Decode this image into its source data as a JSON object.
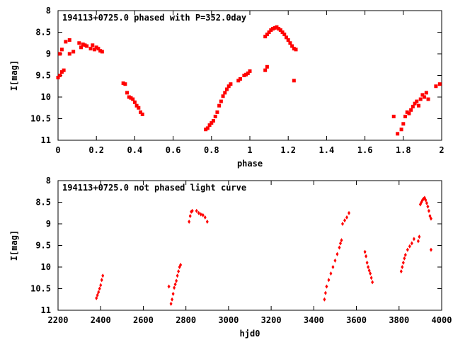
{
  "chart_data": [
    {
      "type": "scatter",
      "title": "194113+0725.0 phased with P=352.0day",
      "xlabel": "phase",
      "ylabel": "I[mag]",
      "xlim": [
        0,
        2
      ],
      "ylim": [
        11,
        8
      ],
      "y_inverted": true,
      "grid": false,
      "x_ticks": [
        "0",
        "0.2",
        "0.4",
        "0.6",
        "0.8",
        "1",
        "1.2",
        "1.4",
        "1.6",
        "1.8",
        "2"
      ],
      "y_ticks": [
        "8",
        "8.5",
        "9",
        "9.5",
        "10",
        "10.5",
        "11"
      ],
      "marker_color": "#ff0000",
      "marker": "filled-square",
      "series": [
        {
          "points": [
            [
              0.0,
              9.55
            ],
            [
              0.01,
              9.5
            ],
            [
              0.01,
              9.0
            ],
            [
              0.02,
              9.42
            ],
            [
              0.02,
              8.9
            ],
            [
              0.03,
              9.38
            ],
            [
              0.04,
              8.72
            ],
            [
              0.06,
              9.0
            ],
            [
              0.06,
              8.68
            ],
            [
              0.08,
              8.95
            ],
            [
              0.11,
              8.75
            ],
            [
              0.12,
              8.85
            ],
            [
              0.13,
              8.78
            ],
            [
              0.14,
              8.8
            ],
            [
              0.15,
              8.82
            ],
            [
              0.17,
              8.88
            ],
            [
              0.18,
              8.8
            ],
            [
              0.19,
              8.9
            ],
            [
              0.2,
              8.85
            ],
            [
              0.21,
              8.88
            ],
            [
              0.22,
              8.93
            ],
            [
              0.23,
              8.95
            ],
            [
              0.34,
              9.68
            ],
            [
              0.35,
              9.7
            ],
            [
              0.36,
              9.9
            ],
            [
              0.37,
              10.0
            ],
            [
              0.38,
              10.02
            ],
            [
              0.39,
              10.05
            ],
            [
              0.4,
              10.12
            ],
            [
              0.41,
              10.2
            ],
            [
              0.42,
              10.25
            ],
            [
              0.43,
              10.35
            ],
            [
              0.44,
              10.4
            ],
            [
              0.77,
              10.75
            ],
            [
              0.78,
              10.72
            ],
            [
              0.79,
              10.65
            ],
            [
              0.8,
              10.6
            ],
            [
              0.81,
              10.55
            ],
            [
              0.82,
              10.45
            ],
            [
              0.83,
              10.35
            ],
            [
              0.84,
              10.2
            ],
            [
              0.85,
              10.1
            ],
            [
              0.86,
              9.98
            ],
            [
              0.87,
              9.9
            ],
            [
              0.88,
              9.82
            ],
            [
              0.89,
              9.75
            ],
            [
              0.9,
              9.7
            ],
            [
              0.94,
              9.62
            ],
            [
              0.95,
              9.58
            ],
            [
              0.97,
              9.5
            ],
            [
              0.98,
              9.48
            ],
            [
              0.99,
              9.45
            ],
            [
              1.0,
              9.4
            ],
            [
              1.08,
              9.38
            ],
            [
              1.09,
              9.3
            ],
            [
              1.08,
              8.6
            ],
            [
              1.09,
              8.55
            ],
            [
              1.1,
              8.5
            ],
            [
              1.11,
              8.45
            ],
            [
              1.12,
              8.42
            ],
            [
              1.13,
              8.4
            ],
            [
              1.14,
              8.38
            ],
            [
              1.15,
              8.42
            ],
            [
              1.16,
              8.45
            ],
            [
              1.17,
              8.5
            ],
            [
              1.18,
              8.55
            ],
            [
              1.19,
              8.62
            ],
            [
              1.2,
              8.68
            ],
            [
              1.21,
              8.75
            ],
            [
              1.22,
              8.82
            ],
            [
              1.23,
              8.88
            ],
            [
              1.24,
              8.9
            ],
            [
              1.23,
              9.62
            ],
            [
              1.75,
              10.45
            ],
            [
              1.77,
              10.85
            ],
            [
              1.79,
              10.75
            ],
            [
              1.8,
              10.62
            ],
            [
              1.81,
              10.45
            ],
            [
              1.82,
              10.35
            ],
            [
              1.83,
              10.38
            ],
            [
              1.84,
              10.3
            ],
            [
              1.85,
              10.22
            ],
            [
              1.86,
              10.15
            ],
            [
              1.87,
              10.1
            ],
            [
              1.88,
              10.2
            ],
            [
              1.89,
              10.05
            ],
            [
              1.9,
              9.95
            ],
            [
              1.91,
              10.0
            ],
            [
              1.92,
              9.9
            ],
            [
              1.93,
              10.05
            ],
            [
              1.97,
              9.75
            ],
            [
              1.99,
              9.7
            ]
          ]
        }
      ]
    },
    {
      "type": "scatter",
      "title": "194113+0725.0 not phased light curve",
      "xlabel": "hjd0",
      "ylabel": "I[mag]",
      "xlim": [
        2200,
        4000
      ],
      "ylim": [
        11,
        8
      ],
      "y_inverted": true,
      "grid": false,
      "x_ticks": [
        "2200",
        "2400",
        "2600",
        "2800",
        "3000",
        "3200",
        "3400",
        "3600",
        "3800",
        "4000"
      ],
      "y_ticks": [
        "8",
        "8.5",
        "9",
        "9.5",
        "10",
        "10.5",
        "11"
      ],
      "marker_color": "#ff0000",
      "marker": "filled-diamond",
      "series": [
        {
          "points": [
            [
              2380,
              10.72
            ],
            [
              2385,
              10.65
            ],
            [
              2390,
              10.58
            ],
            [
              2395,
              10.5
            ],
            [
              2400,
              10.42
            ],
            [
              2405,
              10.3
            ],
            [
              2410,
              10.2
            ],
            [
              2720,
              10.45
            ],
            [
              2730,
              10.85
            ],
            [
              2735,
              10.75
            ],
            [
              2740,
              10.62
            ],
            [
              2745,
              10.48
            ],
            [
              2750,
              10.4
            ],
            [
              2755,
              10.32
            ],
            [
              2760,
              10.2
            ],
            [
              2765,
              10.1
            ],
            [
              2770,
              10.0
            ],
            [
              2775,
              9.95
            ],
            [
              2815,
              8.95
            ],
            [
              2820,
              8.82
            ],
            [
              2825,
              8.72
            ],
            [
              2830,
              8.7
            ],
            [
              2850,
              8.7
            ],
            [
              2860,
              8.75
            ],
            [
              2870,
              8.78
            ],
            [
              2880,
              8.8
            ],
            [
              2890,
              8.85
            ],
            [
              2900,
              8.95
            ],
            [
              3450,
              10.75
            ],
            [
              3455,
              10.6
            ],
            [
              3460,
              10.45
            ],
            [
              3470,
              10.3
            ],
            [
              3480,
              10.15
            ],
            [
              3490,
              10.0
            ],
            [
              3500,
              9.85
            ],
            [
              3510,
              9.7
            ],
            [
              3520,
              9.55
            ],
            [
              3525,
              9.45
            ],
            [
              3530,
              9.38
            ],
            [
              3535,
              9.0
            ],
            [
              3545,
              8.92
            ],
            [
              3555,
              8.85
            ],
            [
              3565,
              8.75
            ],
            [
              3640,
              9.65
            ],
            [
              3645,
              9.75
            ],
            [
              3650,
              9.9
            ],
            [
              3655,
              10.0
            ],
            [
              3660,
              10.08
            ],
            [
              3665,
              10.15
            ],
            [
              3670,
              10.25
            ],
            [
              3675,
              10.35
            ],
            [
              3810,
              10.1
            ],
            [
              3815,
              10.0
            ],
            [
              3820,
              9.9
            ],
            [
              3825,
              9.8
            ],
            [
              3830,
              9.72
            ],
            [
              3840,
              9.6
            ],
            [
              3850,
              9.52
            ],
            [
              3860,
              9.45
            ],
            [
              3870,
              9.35
            ],
            [
              3890,
              9.4
            ],
            [
              3895,
              9.3
            ],
            [
              3900,
              8.55
            ],
            [
              3905,
              8.5
            ],
            [
              3910,
              8.45
            ],
            [
              3915,
              8.42
            ],
            [
              3920,
              8.4
            ],
            [
              3925,
              8.45
            ],
            [
              3930,
              8.52
            ],
            [
              3935,
              8.6
            ],
            [
              3940,
              8.7
            ],
            [
              3945,
              8.82
            ],
            [
              3950,
              8.88
            ],
            [
              3950,
              9.6
            ]
          ]
        }
      ]
    }
  ]
}
